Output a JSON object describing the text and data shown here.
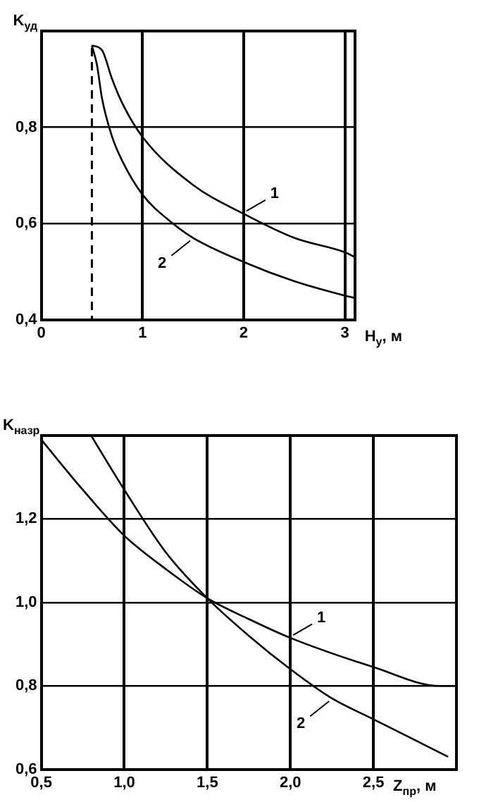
{
  "chart_data": [
    {
      "type": "line",
      "xlabel": "H$_{у}$, м",
      "ylabel": "K$_{уд}$",
      "xlim": [
        0,
        3.1
      ],
      "ylim": [
        0.4,
        1.0
      ],
      "xticks": [
        0,
        1,
        2,
        3
      ],
      "yticks": [
        {
          "value": 0.4,
          "label": "0,4"
        },
        {
          "value": 0.6,
          "label": "0,6"
        },
        {
          "value": 0.8,
          "label": "0,8"
        }
      ],
      "grid": true,
      "line_style": "solid",
      "marker": "none",
      "series": [
        {
          "name": "1",
          "color": "#000000",
          "x": [
            0.5,
            0.6,
            0.7,
            0.8,
            1,
            1.5,
            2,
            2.5,
            3,
            3.1
          ],
          "values": [
            0.97,
            0.96,
            0.9,
            0.85,
            0.78,
            0.68,
            0.62,
            0.57,
            0.54,
            0.53
          ]
        },
        {
          "name": "2",
          "color": "#000000",
          "x": [
            0.5,
            0.55,
            0.6,
            0.7,
            0.8,
            1,
            1.3,
            1.5,
            2,
            2.5,
            3,
            3.1
          ],
          "values": [
            0.97,
            0.93,
            0.86,
            0.78,
            0.73,
            0.66,
            0.6,
            0.57,
            0.52,
            0.48,
            0.45,
            0.445
          ]
        }
      ],
      "ref_lines": [
        {
          "axis": "x",
          "value": 0.5,
          "line_style": "dashed",
          "color": "#000000"
        }
      ]
    },
    {
      "type": "line",
      "xlabel": "Z$_{пр}$, м",
      "ylabel": "K$_{назр}$",
      "xlim": [
        0.5,
        3.0
      ],
      "ylim": [
        0.6,
        1.4
      ],
      "xticks": [
        {
          "value": 0.5,
          "label": "0,5"
        },
        {
          "value": 1,
          "label": "1,0"
        },
        {
          "value": 1.5,
          "label": "1,5"
        },
        {
          "value": 2,
          "label": "2,0"
        },
        {
          "value": 2.5,
          "label": "2,5"
        }
      ],
      "yticks": [
        {
          "value": 0.6,
          "label": "0,6"
        },
        {
          "value": 0.8,
          "label": "0,8"
        },
        {
          "value": 1,
          "label": "1,0"
        },
        {
          "value": 1.2,
          "label": "1,2"
        }
      ],
      "grid": true,
      "line_style": "solid",
      "marker": "none",
      "series": [
        {
          "name": "1",
          "color": "#000000",
          "x": [
            0.5,
            0.75,
            1,
            1.25,
            1.5,
            1.75,
            2,
            2.5,
            2.9,
            3
          ],
          "values": [
            1.39,
            1.27,
            1.16,
            1.08,
            1.01,
            0.96,
            0.915,
            0.845,
            0.8,
            0.8
          ]
        },
        {
          "name": "2",
          "color": "#000000",
          "x": [
            0.8,
            1,
            1.25,
            1.5,
            1.75,
            2,
            2.25,
            2.5,
            2.75,
            2.95
          ],
          "values": [
            1.4,
            1.27,
            1.12,
            1.01,
            0.92,
            0.84,
            0.77,
            0.72,
            0.67,
            0.63
          ]
        }
      ]
    }
  ]
}
